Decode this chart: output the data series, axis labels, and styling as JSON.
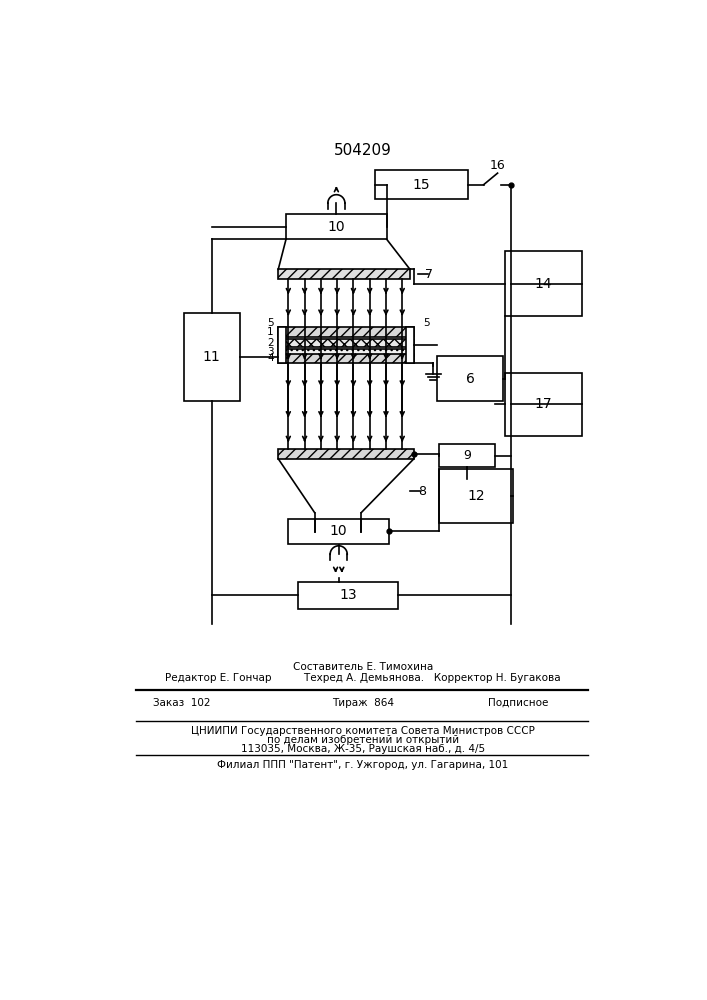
{
  "title": "504209",
  "bg": "#ffffff",
  "lc": "#000000",
  "lw": 1.2,
  "fig_w": 7.07,
  "fig_h": 10.0,
  "footer": {
    "line1": "Составитель Е. Тимохина",
    "line2": "Редактор Е. Гончар          Техред А. Демьянова.   Корректор Н. Бугакова",
    "col1": "Заказ  102",
    "col2": "Тираж  864",
    "col3": "Подписное",
    "line4": "ЦНИИПИ Государственного комитета Совета Министров СССР",
    "line5": "по делам изобретений и открытий",
    "line6": "113035, Москва, Ж-35, Раушская наб., д. 4/5",
    "line7": "Филиал ППП \"Патент\", г. Ужгород, ул. Гагарина, 101"
  }
}
